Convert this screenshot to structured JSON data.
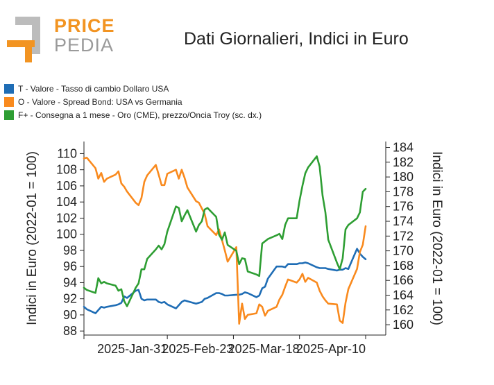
{
  "header": {
    "logo_top": "PRICE",
    "logo_bottom": "PEDIA",
    "title": "Dati Giornalieri, Indici in Euro"
  },
  "colors": {
    "blue": "#1f6db5",
    "orange": "#f98a1e",
    "green": "#2e9e33",
    "logo_orange": "#f29422",
    "logo_gray": "#bcbcbc"
  },
  "legend": [
    {
      "label": "T - Valore - Tasso di cambio Dollaro USA",
      "color": "#1f6db5"
    },
    {
      "label": "O - Valore - Spread Bond: USA vs Germania",
      "color": "#f98a1e"
    },
    {
      "label": "F+ - Consegna a 1 mese - Oro (CME), prezzo/Oncia Troy (sc. dx.)",
      "color": "#2e9e33"
    }
  ],
  "chart_data": {
    "type": "line",
    "title": "Dati Giornalieri, Indici in Euro",
    "ylabel": "Indici in Euro (2022-01 = 100)",
    "y2label": "Indici in Euro (2022-01 = 100)",
    "ylim": [
      87.5,
      111.5
    ],
    "y2lim": [
      158.6,
      184.8
    ],
    "yticks": [
      88,
      90,
      92,
      94,
      96,
      98,
      100,
      102,
      104,
      106,
      108,
      110
    ],
    "y2ticks": [
      160,
      162,
      164,
      166,
      168,
      170,
      172,
      174,
      176,
      178,
      180,
      182,
      184
    ],
    "xlim": [
      "2025-01-02",
      "2025-04-17"
    ],
    "xticks": [
      "2025-Jan-31",
      "2025-Feb-23",
      "2025-Mar-18",
      "2025-Apr-10"
    ],
    "xtick_dates": [
      "2025-01-31",
      "2025-02-23",
      "2025-03-18",
      "2025-04-10"
    ],
    "series": [
      {
        "name": "T - Valore - Tasso di cambio Dollaro USA",
        "axis": "left",
        "color": "#1f6db5",
        "x": [
          "2025-01-02",
          "2025-01-03",
          "2025-01-06",
          "2025-01-07",
          "2025-01-08",
          "2025-01-09",
          "2025-01-10",
          "2025-01-13",
          "2025-01-14",
          "2025-01-15",
          "2025-01-16",
          "2025-01-17",
          "2025-01-20",
          "2025-01-21",
          "2025-01-22",
          "2025-01-23",
          "2025-01-24",
          "2025-01-27",
          "2025-01-28",
          "2025-01-29",
          "2025-01-30",
          "2025-01-31",
          "2025-02-03",
          "2025-02-04",
          "2025-02-05",
          "2025-02-06",
          "2025-02-07",
          "2025-02-10",
          "2025-02-11",
          "2025-02-12",
          "2025-02-13",
          "2025-02-14",
          "2025-02-17",
          "2025-02-18",
          "2025-02-19",
          "2025-02-20",
          "2025-02-21",
          "2025-02-24",
          "2025-02-25",
          "2025-02-26",
          "2025-02-27",
          "2025-02-28",
          "2025-03-03",
          "2025-03-04",
          "2025-03-05",
          "2025-03-06",
          "2025-03-07",
          "2025-03-10",
          "2025-03-11",
          "2025-03-12",
          "2025-03-13",
          "2025-03-14",
          "2025-03-17",
          "2025-03-18",
          "2025-03-19",
          "2025-03-20",
          "2025-03-21",
          "2025-03-24",
          "2025-03-25",
          "2025-03-26",
          "2025-03-27",
          "2025-03-28",
          "2025-03-31",
          "2025-04-01",
          "2025-04-02",
          "2025-04-03",
          "2025-04-04",
          "2025-04-07",
          "2025-04-08",
          "2025-04-09",
          "2025-04-10"
        ],
        "values": [
          91.0,
          90.7,
          90.2,
          90.6,
          91.0,
          90.9,
          91.0,
          91.2,
          91.3,
          91.5,
          92.3,
          92.1,
          93.0,
          93.1,
          92.0,
          91.8,
          91.9,
          91.9,
          91.6,
          91.5,
          91.6,
          91.3,
          90.8,
          91.2,
          91.6,
          91.8,
          91.7,
          91.4,
          91.5,
          91.6,
          92.0,
          92.1,
          92.7,
          92.7,
          92.6,
          92.4,
          92.4,
          92.5,
          92.5,
          92.6,
          92.8,
          92.7,
          92.2,
          92.4,
          93.3,
          93.5,
          94.5,
          96.0,
          96.0,
          96.0,
          95.9,
          96.3,
          96.3,
          96.4,
          96.4,
          96.5,
          96.4,
          95.9,
          95.8,
          95.8,
          95.8,
          95.7,
          95.5,
          95.6,
          95.6,
          95.8,
          95.7,
          98.2,
          97.6,
          97.2,
          96.9
        ]
      },
      {
        "name": "O - Valore - Spread Bond: USA vs Germania",
        "axis": "left",
        "color": "#f98a1e",
        "x": [
          "2025-01-02",
          "2025-01-03",
          "2025-01-06",
          "2025-01-07",
          "2025-01-08",
          "2025-01-09",
          "2025-01-10",
          "2025-01-13",
          "2025-01-14",
          "2025-01-15",
          "2025-01-16",
          "2025-01-17",
          "2025-01-20",
          "2025-01-21",
          "2025-01-22",
          "2025-01-23",
          "2025-01-24",
          "2025-01-27",
          "2025-01-28",
          "2025-01-29",
          "2025-01-30",
          "2025-01-31",
          "2025-02-03",
          "2025-02-04",
          "2025-02-05",
          "2025-02-06",
          "2025-02-07",
          "2025-02-10",
          "2025-02-11",
          "2025-02-12",
          "2025-02-13",
          "2025-02-14",
          "2025-02-17",
          "2025-02-18",
          "2025-02-19",
          "2025-02-20",
          "2025-02-21",
          "2025-02-24",
          "2025-02-25",
          "2025-02-26",
          "2025-02-27",
          "2025-02-28",
          "2025-03-03",
          "2025-03-04",
          "2025-03-05",
          "2025-03-06",
          "2025-03-07",
          "2025-03-10",
          "2025-03-11",
          "2025-03-12",
          "2025-03-13",
          "2025-03-14",
          "2025-03-17",
          "2025-03-18",
          "2025-03-19",
          "2025-03-20",
          "2025-03-21",
          "2025-03-24",
          "2025-03-25",
          "2025-03-26",
          "2025-03-27",
          "2025-03-28",
          "2025-03-31",
          "2025-04-01",
          "2025-04-02",
          "2025-04-03",
          "2025-04-04",
          "2025-04-07",
          "2025-04-08",
          "2025-04-09",
          "2025-04-10"
        ],
        "values": [
          109.4,
          109.5,
          108.2,
          106.9,
          107.6,
          106.5,
          106.9,
          107.4,
          107.8,
          106.3,
          105.9,
          105.3,
          103.9,
          103.6,
          104.5,
          106.5,
          107.3,
          108.6,
          107.4,
          106.1,
          106.1,
          107.5,
          108.0,
          106.9,
          108.0,
          107.0,
          105.8,
          104.1,
          103.9,
          103.2,
          102.5,
          101.0,
          99.9,
          100.6,
          99.3,
          98.0,
          96.6,
          98.4,
          88.9,
          91.4,
          89.5,
          90.0,
          90.2,
          91.3,
          91.0,
          89.9,
          90.5,
          91.0,
          91.9,
          92.5,
          93.5,
          94.4,
          94.0,
          94.4,
          95.1,
          94.1,
          94.6,
          94.0,
          93.0,
          92.3,
          91.8,
          91.4,
          91.3,
          89.3,
          89.0,
          91.5,
          93.2,
          95.7,
          97.8,
          98.7,
          101.0
        ]
      },
      {
        "name": "F+ - Consegna a 1 mese - Oro (CME), prezzo/Oncia Troy (sc. dx.)",
        "axis": "right",
        "color": "#2e9e33",
        "x": [
          "2025-01-02",
          "2025-01-03",
          "2025-01-06",
          "2025-01-07",
          "2025-01-08",
          "2025-01-09",
          "2025-01-10",
          "2025-01-13",
          "2025-01-14",
          "2025-01-15",
          "2025-01-16",
          "2025-01-17",
          "2025-01-20",
          "2025-01-21",
          "2025-01-22",
          "2025-01-23",
          "2025-01-24",
          "2025-01-27",
          "2025-01-28",
          "2025-01-29",
          "2025-01-30",
          "2025-01-31",
          "2025-02-03",
          "2025-02-04",
          "2025-02-05",
          "2025-02-06",
          "2025-02-07",
          "2025-02-10",
          "2025-02-11",
          "2025-02-12",
          "2025-02-13",
          "2025-02-14",
          "2025-02-17",
          "2025-02-18",
          "2025-02-19",
          "2025-02-20",
          "2025-02-21",
          "2025-02-24",
          "2025-02-25",
          "2025-02-26",
          "2025-02-27",
          "2025-02-28",
          "2025-03-03",
          "2025-03-04",
          "2025-03-05",
          "2025-03-06",
          "2025-03-07",
          "2025-03-10",
          "2025-03-11",
          "2025-03-12",
          "2025-03-13",
          "2025-03-14",
          "2025-03-17",
          "2025-03-18",
          "2025-03-19",
          "2025-03-20",
          "2025-03-21",
          "2025-03-24",
          "2025-03-25",
          "2025-03-26",
          "2025-03-27",
          "2025-03-28",
          "2025-03-31",
          "2025-04-01",
          "2025-04-02",
          "2025-04-03",
          "2025-04-04",
          "2025-04-07",
          "2025-04-08",
          "2025-04-09",
          "2025-04-10"
        ],
        "values": [
          165.0,
          164.7,
          164.3,
          166.3,
          165.6,
          165.8,
          165.6,
          165.3,
          164.6,
          164.8,
          163.2,
          162.5,
          165.0,
          165.6,
          167.5,
          167.5,
          168.9,
          170.2,
          170.7,
          170.2,
          170.9,
          172.6,
          176.0,
          175.8,
          174.0,
          174.8,
          175.5,
          172.6,
          173.5,
          174.0,
          175.6,
          175.8,
          174.6,
          172.2,
          171.5,
          172.5,
          170.8,
          170.0,
          168.2,
          169.0,
          168.9,
          167.2,
          166.8,
          166.6,
          171.0,
          171.3,
          171.6,
          172.1,
          172.3,
          171.6,
          173.5,
          174.4,
          174.4,
          176.8,
          178.8,
          180.5,
          181.3,
          182.8,
          181.4,
          177.5,
          175.2,
          171.5,
          168.4,
          167.5,
          169.0,
          172.9,
          173.5,
          174.4,
          175.2,
          178.0,
          178.4
        ]
      }
    ]
  }
}
